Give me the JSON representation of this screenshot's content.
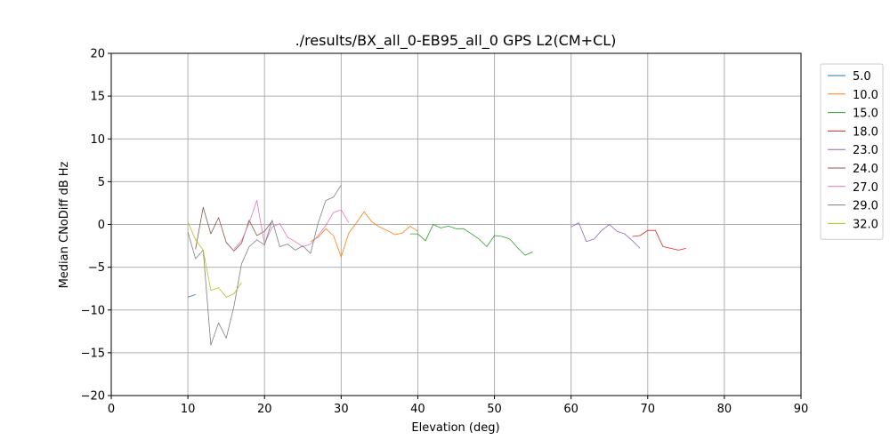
{
  "chart_data": {
    "type": "line",
    "title": "./results/BX_all_0-EB95_all_0 GPS L2(CM+CL)",
    "xlabel": "Elevation (deg)",
    "ylabel": "Median CNoDiff dB Hz",
    "xlim": [
      0,
      90
    ],
    "ylim": [
      -20,
      20
    ],
    "xticks": [
      0,
      10,
      20,
      30,
      40,
      50,
      60,
      70,
      80,
      90
    ],
    "yticks": [
      -20,
      -15,
      -10,
      -5,
      0,
      5,
      10,
      15,
      20
    ],
    "xtick_labels": [
      "0",
      "10",
      "20",
      "30",
      "40",
      "50",
      "60",
      "70",
      "80",
      "90"
    ],
    "ytick_labels": [
      "−20",
      "−15",
      "−10",
      "−5",
      "0",
      "5",
      "10",
      "15",
      "20"
    ],
    "grid": true,
    "legend_position": "outside right, top",
    "series": [
      {
        "name": "5.0",
        "color": "#1f77b4",
        "x": [
          10,
          11
        ],
        "y": [
          -8.5,
          -8.2
        ]
      },
      {
        "name": "10.0",
        "color": "#ff7f0e",
        "x": [
          26,
          27,
          28,
          29,
          30,
          31,
          32,
          33,
          34,
          35,
          36,
          37,
          38,
          39,
          40
        ],
        "y": [
          -2.0,
          -1.5,
          -0.5,
          -1.3,
          -3.8,
          -1.0,
          0.2,
          1.5,
          0.3,
          -0.3,
          -0.7,
          -1.2,
          -1.0,
          -0.2,
          -0.8
        ]
      },
      {
        "name": "15.0",
        "color": "#2ca02c",
        "x": [
          39,
          40,
          41,
          42,
          43,
          44,
          45,
          46,
          47,
          48,
          49,
          50,
          51,
          52,
          53,
          54,
          55
        ],
        "y": [
          -1.1,
          -1.1,
          -1.9,
          0.0,
          -0.4,
          -0.2,
          -0.5,
          -0.5,
          -1.1,
          -1.7,
          -2.6,
          -1.3,
          -1.4,
          -1.7,
          -2.7,
          -3.6,
          -3.2
        ]
      },
      {
        "name": "18.0",
        "color": "#d62728",
        "x": [
          68,
          69,
          70,
          71,
          72,
          73,
          74,
          75
        ],
        "y": [
          -1.4,
          -1.3,
          -0.7,
          -0.7,
          -2.6,
          -2.8,
          -3.0,
          -2.8
        ]
      },
      {
        "name": "23.0",
        "color": "#9467bd",
        "x": [
          60,
          61,
          62,
          63,
          64,
          65,
          66,
          67,
          68,
          69
        ],
        "y": [
          -0.3,
          0.2,
          -2.0,
          -1.7,
          -0.7,
          0.0,
          -0.8,
          -1.1,
          -1.9,
          -2.8
        ]
      },
      {
        "name": "24.0",
        "color": "#8c564b",
        "x": [
          11,
          12,
          13,
          14,
          15,
          16,
          17,
          18,
          19,
          20,
          21
        ],
        "y": [
          -2.9,
          2.0,
          -1.1,
          0.8,
          -2.1,
          -3.1,
          -2.2,
          0.5,
          -1.3,
          -0.8,
          0.4
        ]
      },
      {
        "name": "27.0",
        "color": "#e377c2",
        "x": [
          16,
          17,
          18,
          19,
          20,
          21,
          22,
          23,
          24,
          25,
          26,
          27,
          28,
          29,
          30,
          31
        ],
        "y": [
          -2.9,
          -1.9,
          0.2,
          2.8,
          -2.3,
          -0.3,
          0.1,
          -1.5,
          -2.0,
          -2.6,
          -2.3,
          -1.3,
          -0.1,
          1.4,
          1.7,
          0.2
        ]
      },
      {
        "name": "29.0",
        "color": "#7f7f7f",
        "x": [
          10,
          11,
          12,
          13,
          14,
          15,
          16,
          17,
          18,
          19,
          20,
          21,
          22,
          23,
          24,
          25,
          26,
          27,
          28,
          29,
          30
        ],
        "y": [
          -0.9,
          -4.0,
          -3.0,
          -14.1,
          -11.5,
          -13.3,
          -9.6,
          -4.6,
          -2.6,
          -1.8,
          -2.4,
          0.5,
          -2.6,
          -2.3,
          -3.0,
          -2.5,
          -3.4,
          0.2,
          2.8,
          3.2,
          4.6
        ]
      },
      {
        "name": "32.0",
        "color": "#bcbd22",
        "x": [
          10,
          11,
          12,
          13,
          14,
          15,
          16,
          17
        ],
        "y": [
          0.3,
          -1.8,
          -3.0,
          -7.7,
          -7.4,
          -8.5,
          -8.1,
          -6.8
        ]
      }
    ]
  }
}
